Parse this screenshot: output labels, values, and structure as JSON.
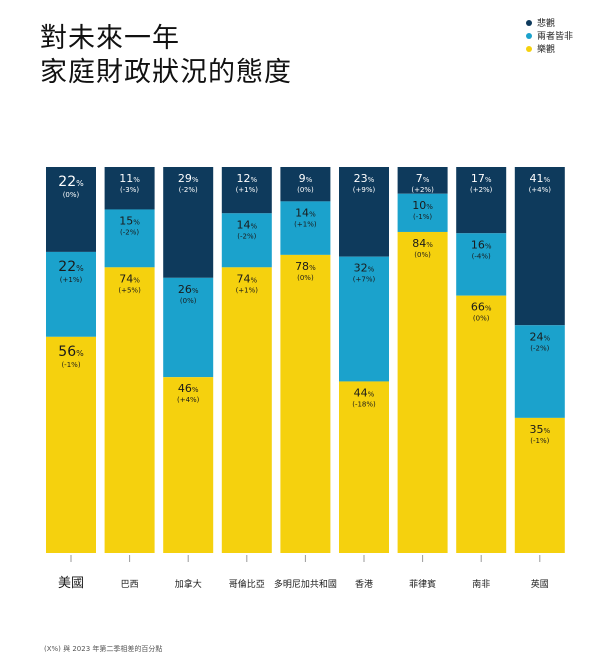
{
  "title_line1": "對未來一年",
  "title_line2": "家庭財政狀況的態度",
  "legend": [
    {
      "label": "悲觀",
      "color": "#0e3a5c"
    },
    {
      "label": "兩者皆非",
      "color": "#1ba2cc"
    },
    {
      "label": "樂觀",
      "color": "#f5d10e"
    }
  ],
  "footnote": "(X%) 與 2023 年第二季相差的百分點",
  "chart_data": {
    "type": "bar",
    "stacked": true,
    "normalized": true,
    "categories": [
      "美國",
      "巴西",
      "加拿大",
      "哥倫比亞",
      "多明尼加共和國",
      "香港",
      "菲律賓",
      "南非",
      "英國"
    ],
    "series": [
      {
        "name": "悲觀",
        "color": "#0e3a5c",
        "values": [
          22,
          11,
          29,
          12,
          9,
          23,
          7,
          17,
          41
        ],
        "changes": [
          "(0%)",
          "(-3%)",
          "(-2%)",
          "(+1%)",
          "(0%)",
          "(+9%)",
          "(+2%)",
          "(+2%)",
          "(+4%)"
        ]
      },
      {
        "name": "兩者皆非",
        "color": "#1ba2cc",
        "values": [
          22,
          15,
          26,
          14,
          14,
          32,
          10,
          16,
          24
        ],
        "changes": [
          "(+1%)",
          "(-2%)",
          "(0%)",
          "(-2%)",
          "(+1%)",
          "(+7%)",
          "(-1%)",
          "(-4%)",
          "(-2%)"
        ]
      },
      {
        "name": "樂觀",
        "color": "#f5d10e",
        "values": [
          56,
          74,
          46,
          74,
          78,
          44,
          84,
          66,
          35
        ],
        "changes": [
          "(-1%)",
          "(+5%)",
          "(+4%)",
          "(+1%)",
          "(0%)",
          "(-18%)",
          "(0%)",
          "(0%)",
          "(-1%)"
        ]
      }
    ]
  }
}
